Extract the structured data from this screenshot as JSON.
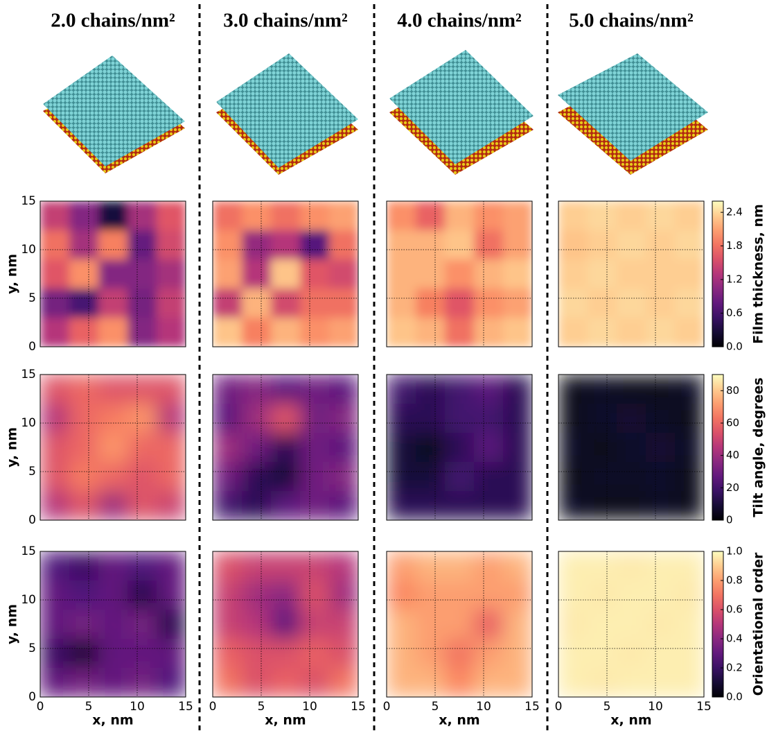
{
  "chart_data": {
    "type": "heatmap-grid",
    "columns": [
      "2.0 chains/nm²",
      "3.0 chains/nm²",
      "4.0 chains/nm²",
      "5.0 chains/nm²"
    ],
    "xlabel": "x, nm",
    "ylabel": "y, nm",
    "xlim": [
      0,
      15
    ],
    "ylim": [
      0,
      15
    ],
    "xticks": [
      0,
      5,
      10,
      15
    ],
    "yticks": [
      0,
      5,
      10,
      15
    ],
    "grid": true,
    "colormap": "magma",
    "rows": [
      {
        "colorbar_label": "Film thickness, nm",
        "clim": [
          0,
          2.6
        ],
        "cticks": [
          {
            "value": 0,
            "label": "0.0"
          },
          0.6,
          1.2,
          1.8,
          2.4
        ],
        "panels": [
          {
            "z": [
              [
                1.4,
                1.0,
                0.3,
                1.2,
                1.6
              ],
              [
                1.8,
                1.2,
                1.9,
                0.8,
                1.5
              ],
              [
                1.6,
                2.0,
                1.0,
                1.0,
                1.2
              ],
              [
                0.9,
                0.6,
                1.4,
                0.9,
                1.4
              ],
              [
                1.3,
                1.7,
                2.0,
                1.0,
                1.3
              ]
            ]
          },
          {
            "z": [
              [
                1.8,
                2.0,
                1.8,
                2.0,
                2.1
              ],
              [
                2.0,
                1.1,
                1.3,
                0.7,
                1.8
              ],
              [
                2.1,
                1.3,
                2.3,
                1.6,
                1.5
              ],
              [
                1.4,
                2.2,
                1.5,
                1.8,
                1.8
              ],
              [
                2.3,
                1.9,
                2.2,
                2.0,
                2.1
              ]
            ]
          },
          {
            "z": [
              [
                2.0,
                1.7,
                2.2,
                2.0,
                2.1
              ],
              [
                2.2,
                2.2,
                2.3,
                1.8,
                2.1
              ],
              [
                2.2,
                2.2,
                2.0,
                2.2,
                2.3
              ],
              [
                2.2,
                1.9,
                1.6,
                2.0,
                2.1
              ],
              [
                2.3,
                2.2,
                1.8,
                2.2,
                2.3
              ]
            ]
          },
          {
            "z": [
              [
                2.35,
                2.4,
                2.35,
                2.4,
                2.35
              ],
              [
                2.3,
                2.35,
                2.4,
                2.35,
                2.4
              ],
              [
                2.35,
                2.4,
                2.35,
                2.35,
                2.35
              ],
              [
                2.4,
                2.35,
                2.4,
                2.35,
                2.4
              ],
              [
                2.35,
                2.4,
                2.35,
                2.4,
                2.35
              ]
            ]
          }
        ]
      },
      {
        "colorbar_label": "Tilt angle, degrees",
        "clim": [
          0,
          90
        ],
        "cticks": [
          0,
          20,
          40,
          60,
          80
        ],
        "panels": [
          {
            "z": [
              [
                55,
                60,
                55,
                55,
                55
              ],
              [
                45,
                60,
                65,
                70,
                45
              ],
              [
                55,
                60,
                70,
                60,
                60
              ],
              [
                55,
                65,
                60,
                55,
                60
              ],
              [
                45,
                55,
                40,
                55,
                50
              ]
            ]
          },
          {
            "z": [
              [
                30,
                35,
                25,
                30,
                25
              ],
              [
                25,
                40,
                55,
                30,
                35
              ],
              [
                40,
                30,
                15,
                30,
                25
              ],
              [
                30,
                15,
                10,
                30,
                35
              ],
              [
                20,
                15,
                25,
                30,
                25
              ]
            ]
          },
          {
            "z": [
              [
                20,
                15,
                20,
                25,
                15
              ],
              [
                15,
                15,
                20,
                20,
                15
              ],
              [
                10,
                5,
                15,
                25,
                15
              ],
              [
                10,
                10,
                20,
                15,
                15
              ],
              [
                15,
                15,
                15,
                15,
                15
              ]
            ]
          },
          {
            "z": [
              [
                5,
                6,
                5,
                5,
                6
              ],
              [
                5,
                7,
                8,
                6,
                5
              ],
              [
                6,
                5,
                7,
                8,
                6
              ],
              [
                5,
                6,
                6,
                7,
                5
              ],
              [
                6,
                5,
                5,
                6,
                5
              ]
            ]
          }
        ]
      },
      {
        "colorbar_label": "Orientational order",
        "clim": [
          0,
          1
        ],
        "cticks": [
          {
            "value": 0,
            "label": "0.0"
          },
          0.2,
          0.4,
          0.6,
          0.8,
          {
            "value": 1,
            "label": "1.0"
          }
        ],
        "panels": [
          {
            "z": [
              [
                0.25,
                0.2,
                0.3,
                0.25,
                0.3
              ],
              [
                0.3,
                0.25,
                0.3,
                0.15,
                0.3
              ],
              [
                0.3,
                0.35,
                0.3,
                0.35,
                0.15
              ],
              [
                0.2,
                0.1,
                0.3,
                0.3,
                0.3
              ],
              [
                0.3,
                0.35,
                0.3,
                0.35,
                0.25
              ]
            ]
          },
          {
            "z": [
              [
                0.6,
                0.55,
                0.55,
                0.55,
                0.5
              ],
              [
                0.55,
                0.45,
                0.4,
                0.6,
                0.45
              ],
              [
                0.55,
                0.5,
                0.3,
                0.55,
                0.55
              ],
              [
                0.65,
                0.6,
                0.6,
                0.65,
                0.6
              ],
              [
                0.7,
                0.6,
                0.65,
                0.6,
                0.7
              ]
            ]
          },
          {
            "z": [
              [
                0.8,
                0.85,
                0.85,
                0.8,
                0.85
              ],
              [
                0.75,
                0.8,
                0.8,
                0.8,
                0.8
              ],
              [
                0.85,
                0.8,
                0.8,
                0.65,
                0.85
              ],
              [
                0.85,
                0.8,
                0.7,
                0.8,
                0.85
              ],
              [
                0.85,
                0.85,
                0.75,
                0.85,
                0.85
              ]
            ]
          },
          {
            "z": [
              [
                0.97,
                0.97,
                0.96,
                0.97,
                0.97
              ],
              [
                0.97,
                0.96,
                0.97,
                0.97,
                0.96
              ],
              [
                0.96,
                0.97,
                0.97,
                0.96,
                0.97
              ],
              [
                0.97,
                0.97,
                0.96,
                0.97,
                0.97
              ],
              [
                0.97,
                0.96,
                0.97,
                0.97,
                0.97
              ]
            ]
          }
        ]
      }
    ]
  }
}
